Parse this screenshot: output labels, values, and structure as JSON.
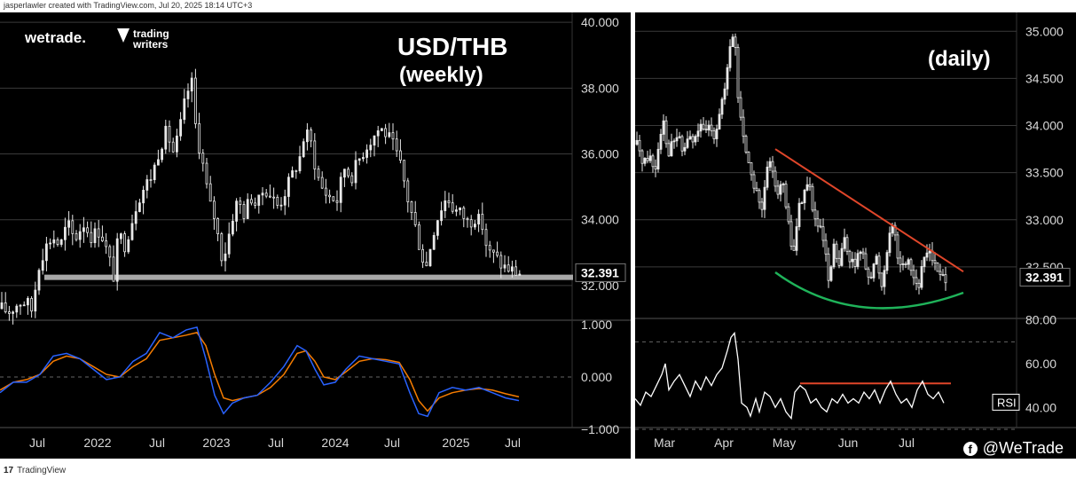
{
  "header": {
    "credit": "jasperlawler created with TradingView.com, Jul 20, 2025 18:14 UTC+3"
  },
  "footer": {
    "brand": "TradingView"
  },
  "watermark": {
    "text": "@WeTrade",
    "icon": "facebook-icon"
  },
  "colors": {
    "background": "#000000",
    "grid": "#3a3a3a",
    "candle": "#e8e8e8",
    "support_line": "#a8a8a8",
    "macd_line": "#2962ff",
    "signal_line": "#f57c00",
    "trend_line": "#e0462a",
    "curve": "#1fb35a",
    "rsi_line": "#ffffff",
    "rsi_level": "#e0462a"
  },
  "chart_data": [
    {
      "type": "candlestick",
      "title": "USD/THB",
      "subtitle": "(weekly)",
      "logos": [
        "wetrade.",
        "trading writers"
      ],
      "ylim": [
        31.0,
        40.3
      ],
      "yticks": [
        "40.000",
        "38.000",
        "36.000",
        "34.000",
        "32.000"
      ],
      "last_price": "32.391",
      "support_level": 32.25,
      "x_ticks": [
        "Jul",
        "2022",
        "Jul",
        "2023",
        "Jul",
        "2024",
        "Jul",
        "2025",
        "Jul"
      ],
      "close_path": [
        [
          0,
          31.3
        ],
        [
          8,
          31.2
        ],
        [
          20,
          31.5
        ],
        [
          28,
          31.5
        ],
        [
          35,
          31.2
        ],
        [
          40,
          32.5
        ],
        [
          48,
          33.1
        ],
        [
          57,
          33.5
        ],
        [
          66,
          33.2
        ],
        [
          74,
          33.9
        ],
        [
          82,
          33.4
        ],
        [
          92,
          33.9
        ],
        [
          101,
          33.5
        ],
        [
          111,
          33.7
        ],
        [
          120,
          32.9
        ],
        [
          126,
          32.3
        ],
        [
          132,
          33.6
        ],
        [
          138,
          33.2
        ],
        [
          145,
          33.8
        ],
        [
          153,
          34.6
        ],
        [
          161,
          35.0
        ],
        [
          170,
          35.4
        ],
        [
          178,
          36.2
        ],
        [
          186,
          36.7
        ],
        [
          194,
          36.0
        ],
        [
          201,
          36.8
        ],
        [
          208,
          37.8
        ],
        [
          214,
          38.2
        ],
        [
          219,
          36.7
        ],
        [
          226,
          35.8
        ],
        [
          234,
          34.5
        ],
        [
          241,
          34.0
        ],
        [
          247,
          32.9
        ],
        [
          253,
          33.1
        ],
        [
          259,
          34.0
        ],
        [
          266,
          34.6
        ],
        [
          273,
          34.2
        ],
        [
          281,
          34.7
        ],
        [
          288,
          34.4
        ],
        [
          296,
          35.0
        ],
        [
          304,
          34.7
        ],
        [
          312,
          34.4
        ],
        [
          320,
          34.9
        ],
        [
          328,
          35.4
        ],
        [
          336,
          35.9
        ],
        [
          342,
          36.7
        ],
        [
          349,
          36.3
        ],
        [
          355,
          35.4
        ],
        [
          362,
          34.9
        ],
        [
          370,
          34.7
        ],
        [
          378,
          34.6
        ],
        [
          386,
          35.6
        ],
        [
          394,
          35.3
        ],
        [
          402,
          35.8
        ],
        [
          410,
          36.2
        ],
        [
          418,
          36.5
        ],
        [
          426,
          36.8
        ],
        [
          434,
          36.6
        ],
        [
          442,
          36.2
        ],
        [
          450,
          35.6
        ],
        [
          458,
          34.6
        ],
        [
          466,
          33.8
        ],
        [
          472,
          33.1
        ],
        [
          478,
          32.5
        ],
        [
          486,
          33.6
        ],
        [
          494,
          34.3
        ],
        [
          502,
          34.7
        ],
        [
          510,
          34.3
        ],
        [
          518,
          34.2
        ],
        [
          526,
          33.9
        ],
        [
          534,
          34.1
        ],
        [
          542,
          33.8
        ],
        [
          548,
          33.0
        ],
        [
          556,
          32.9
        ],
        [
          564,
          32.6
        ],
        [
          572,
          32.5
        ],
        [
          580,
          32.4
        ],
        [
          586,
          32.39
        ]
      ],
      "macd": {
        "ylim": [
          -1.0,
          1.0
        ],
        "yticks": [
          "1.000",
          "0.000",
          "−1.000"
        ],
        "macd_line": [
          [
            0,
            -0.3
          ],
          [
            15,
            -0.1
          ],
          [
            30,
            -0.1
          ],
          [
            45,
            0.05
          ],
          [
            60,
            0.4
          ],
          [
            75,
            0.45
          ],
          [
            90,
            0.35
          ],
          [
            105,
            0.15
          ],
          [
            120,
            -0.05
          ],
          [
            135,
            0.0
          ],
          [
            150,
            0.3
          ],
          [
            165,
            0.45
          ],
          [
            180,
            0.85
          ],
          [
            195,
            0.75
          ],
          [
            210,
            0.9
          ],
          [
            222,
            0.95
          ],
          [
            232,
            0.35
          ],
          [
            242,
            -0.35
          ],
          [
            252,
            -0.7
          ],
          [
            262,
            -0.5
          ],
          [
            275,
            -0.4
          ],
          [
            290,
            -0.35
          ],
          [
            305,
            -0.1
          ],
          [
            320,
            0.2
          ],
          [
            335,
            0.6
          ],
          [
            345,
            0.5
          ],
          [
            355,
            0.15
          ],
          [
            365,
            -0.15
          ],
          [
            378,
            -0.1
          ],
          [
            390,
            0.15
          ],
          [
            405,
            0.4
          ],
          [
            420,
            0.35
          ],
          [
            435,
            0.3
          ],
          [
            450,
            0.25
          ],
          [
            462,
            -0.3
          ],
          [
            472,
            -0.7
          ],
          [
            482,
            -0.75
          ],
          [
            495,
            -0.3
          ],
          [
            510,
            -0.2
          ],
          [
            525,
            -0.25
          ],
          [
            540,
            -0.2
          ],
          [
            555,
            -0.3
          ],
          [
            570,
            -0.4
          ],
          [
            585,
            -0.45
          ]
        ],
        "signal_line": [
          [
            0,
            -0.25
          ],
          [
            15,
            -0.1
          ],
          [
            30,
            -0.05
          ],
          [
            45,
            0.05
          ],
          [
            60,
            0.3
          ],
          [
            75,
            0.4
          ],
          [
            90,
            0.35
          ],
          [
            105,
            0.2
          ],
          [
            120,
            0.05
          ],
          [
            135,
            0.0
          ],
          [
            150,
            0.2
          ],
          [
            165,
            0.35
          ],
          [
            180,
            0.7
          ],
          [
            195,
            0.75
          ],
          [
            210,
            0.8
          ],
          [
            222,
            0.85
          ],
          [
            232,
            0.6
          ],
          [
            242,
            0.05
          ],
          [
            252,
            -0.4
          ],
          [
            262,
            -0.45
          ],
          [
            275,
            -0.4
          ],
          [
            290,
            -0.35
          ],
          [
            305,
            -0.2
          ],
          [
            320,
            0.05
          ],
          [
            335,
            0.45
          ],
          [
            345,
            0.5
          ],
          [
            355,
            0.3
          ],
          [
            365,
            0.0
          ],
          [
            378,
            -0.05
          ],
          [
            390,
            0.1
          ],
          [
            405,
            0.3
          ],
          [
            420,
            0.35
          ],
          [
            435,
            0.33
          ],
          [
            450,
            0.28
          ],
          [
            462,
            -0.05
          ],
          [
            472,
            -0.45
          ],
          [
            482,
            -0.65
          ],
          [
            495,
            -0.4
          ],
          [
            510,
            -0.3
          ],
          [
            525,
            -0.25
          ],
          [
            540,
            -0.22
          ],
          [
            555,
            -0.25
          ],
          [
            570,
            -0.32
          ],
          [
            585,
            -0.38
          ]
        ]
      }
    },
    {
      "type": "candlestick",
      "title": "(daily)",
      "ylim": [
        32.0,
        35.2
      ],
      "yticks": [
        "35.000",
        "34.500",
        "34.000",
        "33.500",
        "33.000",
        "32.500"
      ],
      "last_price": "32.391",
      "x_ticks": [
        "Mar",
        "Apr",
        "May",
        "Jun",
        "Jul"
      ],
      "close_path": [
        [
          0,
          33.8
        ],
        [
          8,
          33.6
        ],
        [
          14,
          33.7
        ],
        [
          20,
          33.5
        ],
        [
          26,
          33.9
        ],
        [
          30,
          34.1
        ],
        [
          34,
          33.7
        ],
        [
          40,
          33.8
        ],
        [
          46,
          33.9
        ],
        [
          52,
          33.7
        ],
        [
          58,
          33.9
        ],
        [
          64,
          33.8
        ],
        [
          70,
          34.0
        ],
        [
          76,
          33.9
        ],
        [
          82,
          34.0
        ],
        [
          88,
          33.9
        ],
        [
          94,
          34.2
        ],
        [
          100,
          34.4
        ],
        [
          106,
          34.9
        ],
        [
          110,
          35.0
        ],
        [
          114,
          34.3
        ],
        [
          118,
          34.0
        ],
        [
          124,
          33.7
        ],
        [
          130,
          33.4
        ],
        [
          136,
          33.3
        ],
        [
          140,
          33.0
        ],
        [
          146,
          33.5
        ],
        [
          152,
          33.6
        ],
        [
          158,
          33.3
        ],
        [
          164,
          33.4
        ],
        [
          170,
          33.0
        ],
        [
          176,
          32.6
        ],
        [
          182,
          33.1
        ],
        [
          188,
          33.3
        ],
        [
          194,
          33.4
        ],
        [
          200,
          33.0
        ],
        [
          206,
          32.9
        ],
        [
          212,
          32.7
        ],
        [
          216,
          32.3
        ],
        [
          222,
          32.7
        ],
        [
          228,
          32.5
        ],
        [
          234,
          32.8
        ],
        [
          240,
          32.6
        ],
        [
          246,
          32.5
        ],
        [
          252,
          32.7
        ],
        [
          258,
          32.5
        ],
        [
          264,
          32.4
        ],
        [
          270,
          32.6
        ],
        [
          276,
          32.3
        ],
        [
          282,
          32.7
        ],
        [
          288,
          33.0
        ],
        [
          294,
          32.6
        ],
        [
          300,
          32.5
        ],
        [
          306,
          32.6
        ],
        [
          312,
          32.4
        ],
        [
          318,
          32.3
        ],
        [
          324,
          32.6
        ],
        [
          330,
          32.7
        ],
        [
          336,
          32.5
        ],
        [
          342,
          32.4
        ],
        [
          348,
          32.39
        ]
      ],
      "trend_line": [
        [
          158,
          33.75
        ],
        [
          370,
          32.45
        ]
      ],
      "rsi": {
        "label": "RSI",
        "ylim": [
          30,
          90
        ],
        "yticks": [
          "80.00",
          "60.00",
          "40.00"
        ],
        "resistance": 51,
        "values": [
          [
            0,
            44
          ],
          [
            6,
            41
          ],
          [
            12,
            47
          ],
          [
            18,
            45
          ],
          [
            24,
            50
          ],
          [
            30,
            55
          ],
          [
            34,
            60
          ],
          [
            38,
            48
          ],
          [
            44,
            52
          ],
          [
            50,
            55
          ],
          [
            56,
            50
          ],
          [
            62,
            45
          ],
          [
            68,
            52
          ],
          [
            74,
            48
          ],
          [
            80,
            54
          ],
          [
            86,
            50
          ],
          [
            92,
            55
          ],
          [
            98,
            58
          ],
          [
            104,
            66
          ],
          [
            108,
            72
          ],
          [
            112,
            74
          ],
          [
            116,
            62
          ],
          [
            120,
            42
          ],
          [
            126,
            40
          ],
          [
            130,
            36
          ],
          [
            136,
            44
          ],
          [
            140,
            38
          ],
          [
            146,
            47
          ],
          [
            152,
            45
          ],
          [
            158,
            40
          ],
          [
            164,
            44
          ],
          [
            170,
            38
          ],
          [
            176,
            35
          ],
          [
            180,
            47
          ],
          [
            186,
            50
          ],
          [
            192,
            48
          ],
          [
            198,
            42
          ],
          [
            204,
            44
          ],
          [
            210,
            40
          ],
          [
            216,
            38
          ],
          [
            222,
            44
          ],
          [
            228,
            42
          ],
          [
            234,
            46
          ],
          [
            240,
            42
          ],
          [
            246,
            44
          ],
          [
            252,
            42
          ],
          [
            258,
            47
          ],
          [
            264,
            44
          ],
          [
            270,
            48
          ],
          [
            276,
            42
          ],
          [
            282,
            48
          ],
          [
            288,
            52
          ],
          [
            294,
            46
          ],
          [
            300,
            42
          ],
          [
            306,
            44
          ],
          [
            312,
            40
          ],
          [
            318,
            48
          ],
          [
            324,
            52
          ],
          [
            330,
            46
          ],
          [
            336,
            44
          ],
          [
            342,
            47
          ],
          [
            348,
            42
          ]
        ]
      }
    }
  ]
}
